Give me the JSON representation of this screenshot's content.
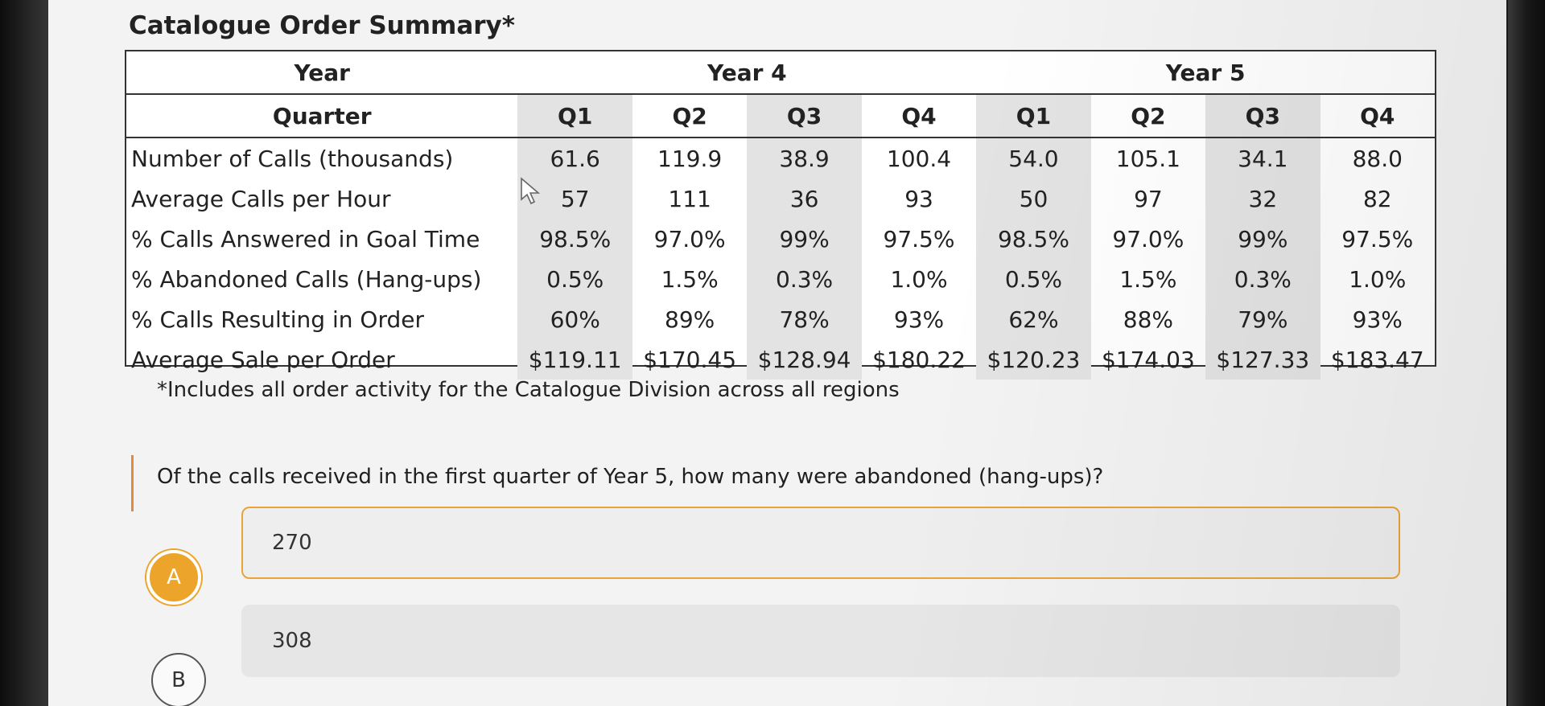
{
  "table": {
    "title": "Catalogue Order Summary*",
    "year_header_label": "Year",
    "years": [
      "Year 4",
      "Year 5"
    ],
    "quarter_header_label": "Quarter",
    "quarters": [
      "Q1",
      "Q2",
      "Q3",
      "Q4",
      "Q1",
      "Q2",
      "Q3",
      "Q4"
    ],
    "rows": [
      {
        "label": "Number of Calls (thousands)",
        "values": [
          "61.6",
          "119.9",
          "38.9",
          "100.4",
          "54.0",
          "105.1",
          "34.1",
          "88.0"
        ]
      },
      {
        "label": "Average Calls per Hour",
        "values": [
          "57",
          "111",
          "36",
          "93",
          "50",
          "97",
          "32",
          "82"
        ]
      },
      {
        "label": "% Calls Answered in Goal Time",
        "values": [
          "98.5%",
          "97.0%",
          "99%",
          "97.5%",
          "98.5%",
          "97.0%",
          "99%",
          "97.5%"
        ]
      },
      {
        "label": "% Abandoned Calls (Hang-ups)",
        "values": [
          "0.5%",
          "1.5%",
          "0.3%",
          "1.0%",
          "0.5%",
          "1.5%",
          "0.3%",
          "1.0%"
        ]
      },
      {
        "label": "% Calls Resulting in Order",
        "values": [
          "60%",
          "89%",
          "78%",
          "93%",
          "62%",
          "88%",
          "79%",
          "93%"
        ]
      },
      {
        "label": "Average Sale per Order",
        "values": [
          "$119.11",
          "$170.45",
          "$128.94",
          "$180.22",
          "$120.23",
          "$174.03",
          "$127.33",
          "$183.47"
        ]
      }
    ],
    "footnote": "*Includes all order activity for the Catalogue Division across all regions"
  },
  "question": {
    "text": "Of the calls received in the first quarter of Year 5, how many were abandoned (hang-ups)?",
    "options": [
      {
        "letter": "A",
        "text": "270",
        "selected": true
      },
      {
        "letter": "B",
        "text": "308",
        "selected": false
      }
    ]
  },
  "colors": {
    "accent": "#eca42a",
    "question_bar": "#e08a3a",
    "shaded_column": "#e3e3e3"
  }
}
